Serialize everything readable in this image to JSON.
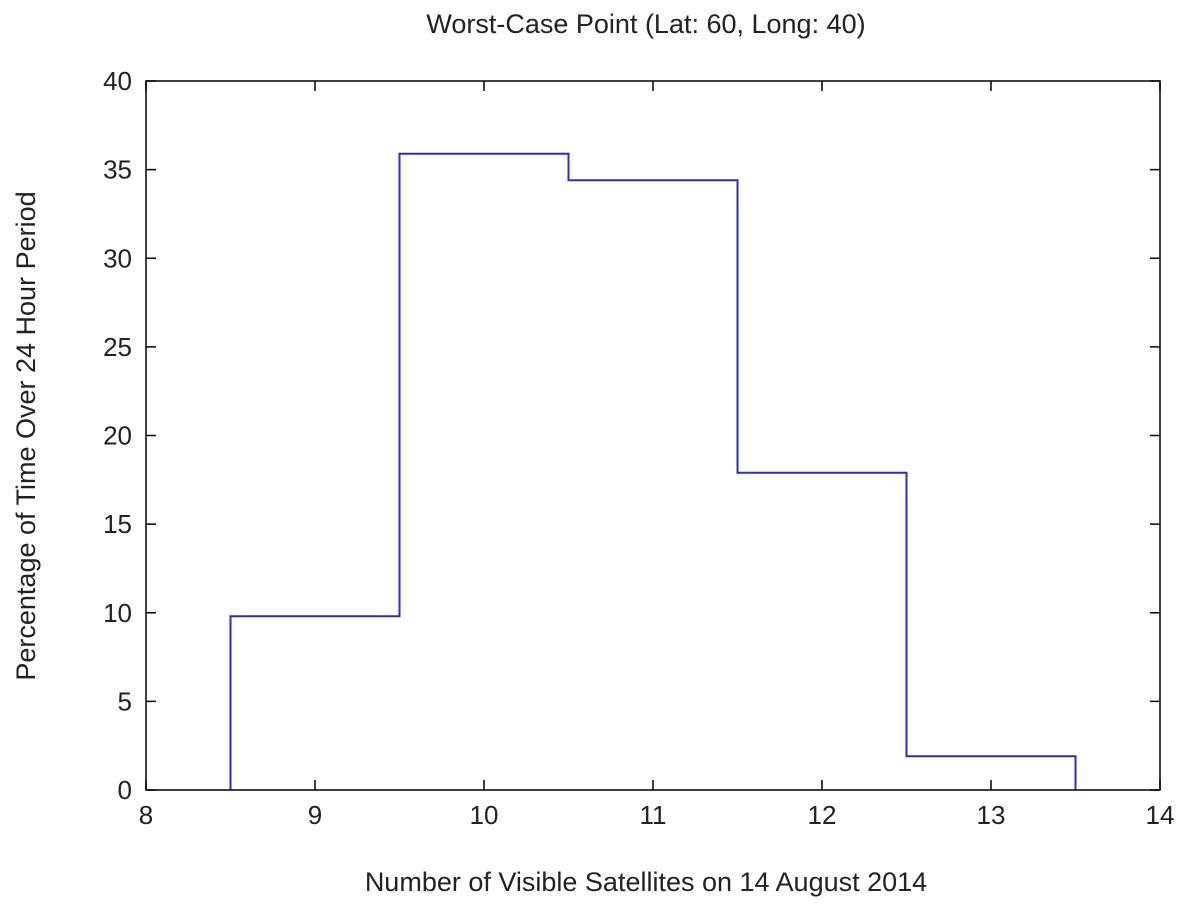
{
  "chart_data": {
    "type": "line",
    "style": "step",
    "title": "Worst-Case Point (Lat: 60, Long: 40)",
    "xlabel": "Number of Visible Satellites on 14 August 2014",
    "ylabel": "Percentage of Time Over 24 Hour Period",
    "xlim": [
      8,
      14
    ],
    "ylim": [
      0,
      40
    ],
    "xticks": [
      8,
      9,
      10,
      11,
      12,
      13,
      14
    ],
    "yticks": [
      0,
      5,
      10,
      15,
      20,
      25,
      30,
      35,
      40
    ],
    "grid": false,
    "series": [
      {
        "color": "#2b2bc8",
        "points": [
          {
            "x": 8.5,
            "y": 0
          },
          {
            "x": 8.5,
            "y": 9.8
          },
          {
            "x": 9.5,
            "y": 9.8
          },
          {
            "x": 9.5,
            "y": 35.9
          },
          {
            "x": 10.5,
            "y": 35.9
          },
          {
            "x": 10.5,
            "y": 34.4
          },
          {
            "x": 11.5,
            "y": 34.4
          },
          {
            "x": 11.5,
            "y": 17.9
          },
          {
            "x": 12.5,
            "y": 17.9
          },
          {
            "x": 12.5,
            "y": 1.9
          },
          {
            "x": 13.5,
            "y": 1.9
          },
          {
            "x": 13.5,
            "y": 0
          }
        ]
      }
    ]
  }
}
